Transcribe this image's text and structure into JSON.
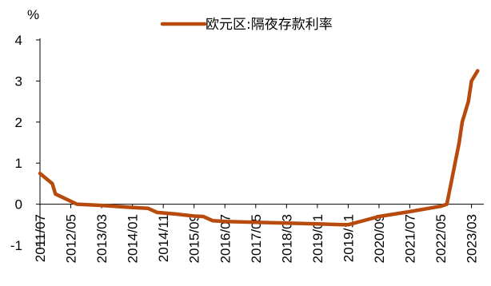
{
  "chart_data": {
    "type": "line",
    "ylabel": "%",
    "ylim": [
      -1,
      4
    ],
    "yticks": [
      -1,
      0,
      1,
      2,
      3,
      4
    ],
    "ytick_labels": [
      "-1",
      "0",
      "1",
      "2",
      "3",
      "4"
    ],
    "xlim": [
      "2011-07",
      "2023-07"
    ],
    "xtick_labels": [
      "2011/07",
      "2012/05",
      "2013/03",
      "2014/01",
      "2014/11",
      "2015/09",
      "2016/07",
      "2017/05",
      "2018/03",
      "2019/01",
      "2019/11",
      "2020/09",
      "2021/07",
      "2022/05",
      "2023/03"
    ],
    "grid": false,
    "legend_position": "top-center",
    "series": [
      {
        "name": "欧元区:隔夜存款利率",
        "color": "#B84A0E",
        "points": [
          {
            "x": "2011-07",
            "y": 0.75
          },
          {
            "x": "2011-11",
            "y": 0.5
          },
          {
            "x": "2011-12",
            "y": 0.25
          },
          {
            "x": "2012-07",
            "y": 0.0
          },
          {
            "x": "2013-03",
            "y": -0.03
          },
          {
            "x": "2014-01",
            "y": -0.08
          },
          {
            "x": "2014-06",
            "y": -0.1
          },
          {
            "x": "2014-09",
            "y": -0.2
          },
          {
            "x": "2015-03",
            "y": -0.24
          },
          {
            "x": "2015-09",
            "y": -0.29
          },
          {
            "x": "2015-12",
            "y": -0.3
          },
          {
            "x": "2016-03",
            "y": -0.4
          },
          {
            "x": "2016-07",
            "y": -0.42
          },
          {
            "x": "2017-05",
            "y": -0.44
          },
          {
            "x": "2018-03",
            "y": -0.46
          },
          {
            "x": "2019-01",
            "y": -0.48
          },
          {
            "x": "2019-09",
            "y": -0.5
          },
          {
            "x": "2019-11",
            "y": -0.5
          },
          {
            "x": "2020-09",
            "y": -0.3
          },
          {
            "x": "2021-07",
            "y": -0.18
          },
          {
            "x": "2022-05",
            "y": -0.05
          },
          {
            "x": "2022-07",
            "y": 0.0
          },
          {
            "x": "2022-09",
            "y": 0.75
          },
          {
            "x": "2022-11",
            "y": 1.5
          },
          {
            "x": "2022-12",
            "y": 2.0
          },
          {
            "x": "2023-02",
            "y": 2.5
          },
          {
            "x": "2023-03",
            "y": 3.0
          },
          {
            "x": "2023-05",
            "y": 3.25
          }
        ]
      }
    ]
  }
}
